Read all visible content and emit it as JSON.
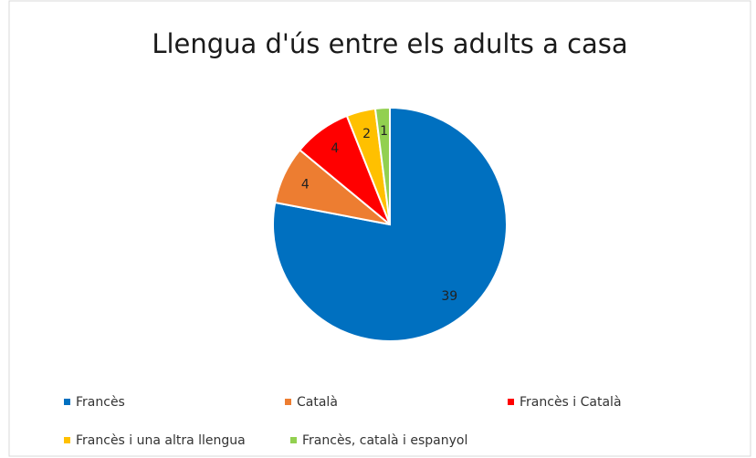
{
  "chart_data": {
    "type": "pie",
    "title": "Llengua d'ús entre els adults a casa",
    "categories": [
      "Francès",
      "Català",
      "Francès i Català",
      "Francès i una altra llengua",
      "Francès, català i espanyol"
    ],
    "values": [
      39,
      4,
      4,
      2,
      1
    ],
    "colors": [
      "#0070c0",
      "#ed7d31",
      "#ff0000",
      "#ffc000",
      "#92d050"
    ],
    "legend": "bottom"
  }
}
